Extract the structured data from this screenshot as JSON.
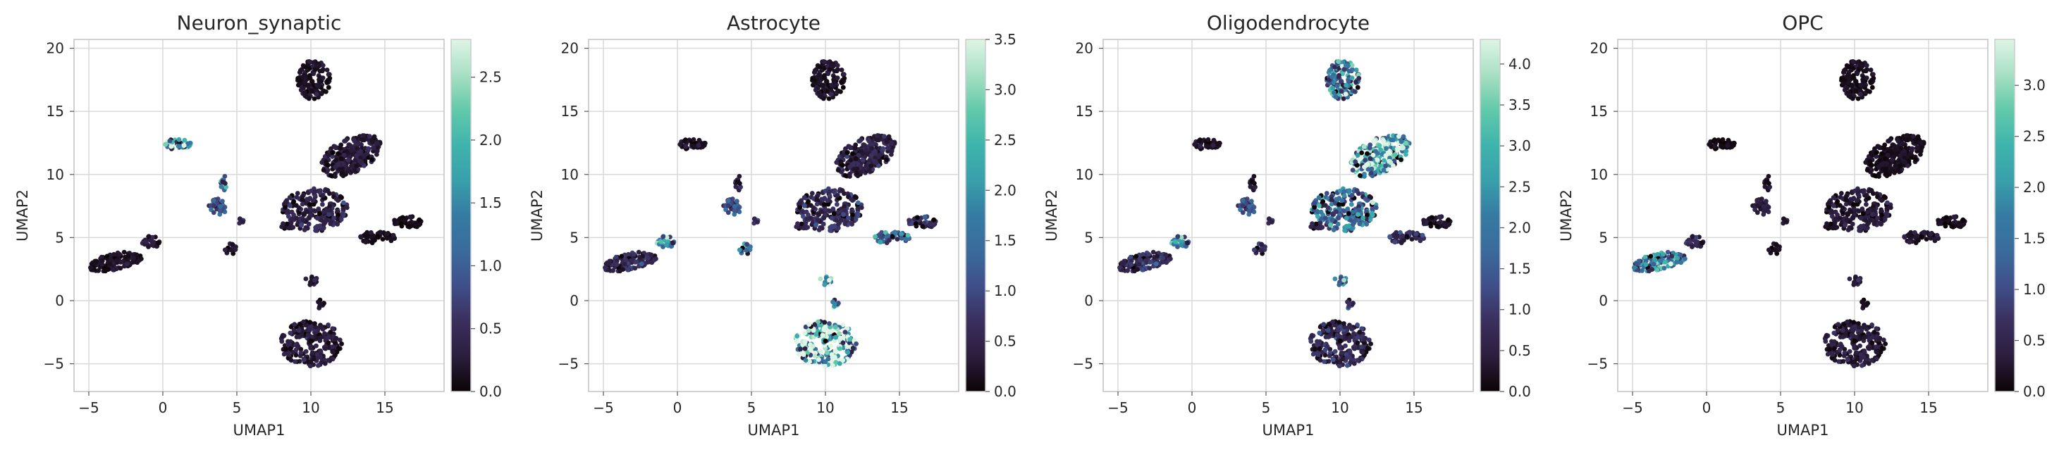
{
  "colorbar_colors": [
    "#0b0405",
    "#2c1e3e",
    "#3b2f5e",
    "#3f4f8a",
    "#3a6b9c",
    "#357ba2",
    "#38a0ab",
    "#3fb4ad",
    "#62c9aa",
    "#a8e0c3",
    "#def5e5"
  ],
  "panels": [
    {
      "title": "Neuron_synaptic",
      "xlabel": "UMAP1",
      "ylabel": "UMAP2",
      "x_ticks": [
        -5,
        0,
        5,
        10,
        15
      ],
      "y_ticks": [
        -5,
        0,
        5,
        10,
        15,
        20
      ],
      "xlim": [
        -6,
        19
      ],
      "ylim": [
        -7.2,
        20.7
      ],
      "cbar_max": 2.8,
      "cbar_ticks": [
        "0.0",
        "0.5",
        "1.0",
        "1.5",
        "2.0",
        "2.5"
      ]
    },
    {
      "title": "Astrocyte",
      "xlabel": "UMAP1",
      "ylabel": "UMAP2",
      "x_ticks": [
        -5,
        0,
        5,
        10,
        15
      ],
      "y_ticks": [
        -5,
        0,
        5,
        10,
        15,
        20
      ],
      "xlim": [
        -6,
        19
      ],
      "ylim": [
        -7.2,
        20.7
      ],
      "cbar_max": 3.5,
      "cbar_ticks": [
        "0.0",
        "0.5",
        "1.0",
        "1.5",
        "2.0",
        "2.5",
        "3.0",
        "3.5"
      ]
    },
    {
      "title": "Oligodendrocyte",
      "xlabel": "UMAP1",
      "ylabel": "UMAP2",
      "x_ticks": [
        -5,
        0,
        5,
        10,
        15
      ],
      "y_ticks": [
        -5,
        0,
        5,
        10,
        15,
        20
      ],
      "xlim": [
        -6,
        19
      ],
      "ylim": [
        -7.2,
        20.7
      ],
      "cbar_max": 4.3,
      "cbar_ticks": [
        "0.0",
        "0.5",
        "1.0",
        "1.5",
        "2.0",
        "2.5",
        "3.0",
        "3.5",
        "4.0"
      ]
    },
    {
      "title": "OPC",
      "xlabel": "UMAP1",
      "ylabel": "UMAP2",
      "x_ticks": [
        -5,
        0,
        5,
        10,
        15
      ],
      "y_ticks": [
        -5,
        0,
        5,
        10,
        15,
        20
      ],
      "xlim": [
        -6,
        19
      ],
      "ylim": [
        -7.2,
        20.7
      ],
      "cbar_max": 3.45,
      "cbar_ticks": [
        "0.0",
        "0.5",
        "1.0",
        "1.5",
        "2.0",
        "2.5",
        "3.0"
      ]
    }
  ],
  "chart_data": {
    "type": "scatter",
    "grid": true,
    "clusters": [
      {
        "cx": 10.2,
        "cy": 17.5,
        "rx": 1.1,
        "ry": 1.6,
        "n": 130
      },
      {
        "cx": 1.0,
        "cy": 12.4,
        "rx": 0.9,
        "ry": 0.45,
        "n": 45
      },
      {
        "cx": 12.7,
        "cy": 11.5,
        "rx": 2.3,
        "ry": 1.3,
        "n": 240,
        "rot": 0.6
      },
      {
        "cx": 10.3,
        "cy": 7.2,
        "rx": 2.2,
        "ry": 1.7,
        "n": 210
      },
      {
        "cx": 8.3,
        "cy": 5.9,
        "rx": 0.7,
        "ry": 0.3,
        "n": 14
      },
      {
        "cx": 4.1,
        "cy": 9.3,
        "rx": 0.25,
        "ry": 0.6,
        "n": 12
      },
      {
        "cx": 3.7,
        "cy": 7.4,
        "rx": 0.6,
        "ry": 0.7,
        "n": 30
      },
      {
        "cx": 4.6,
        "cy": 4.1,
        "rx": 0.4,
        "ry": 0.45,
        "n": 16
      },
      {
        "cx": 5.2,
        "cy": 6.3,
        "rx": 0.3,
        "ry": 0.2,
        "n": 6
      },
      {
        "cx": 16.5,
        "cy": 6.2,
        "rx": 1.0,
        "ry": 0.5,
        "n": 45
      },
      {
        "cx": 14.5,
        "cy": 5.0,
        "rx": 1.2,
        "ry": 0.5,
        "n": 45
      },
      {
        "cx": -3.2,
        "cy": 3.1,
        "rx": 1.9,
        "ry": 0.65,
        "n": 140,
        "rot": 0.25
      },
      {
        "cx": -0.8,
        "cy": 4.7,
        "rx": 0.6,
        "ry": 0.55,
        "n": 28
      },
      {
        "cx": 10.0,
        "cy": -3.4,
        "rx": 2.1,
        "ry": 1.8,
        "n": 230
      },
      {
        "cx": 10.0,
        "cy": 1.6,
        "rx": 0.45,
        "ry": 0.35,
        "n": 14
      },
      {
        "cx": 10.6,
        "cy": -0.3,
        "rx": 0.3,
        "ry": 0.4,
        "n": 10
      }
    ],
    "series": [
      {
        "name": "Neuron_synaptic",
        "level": [
          0.15,
          1.8,
          0.25,
          0.35,
          0.2,
          1.1,
          0.7,
          0.25,
          0.3,
          0.1,
          0.1,
          0.15,
          0.2,
          0.25,
          0.2,
          0.2
        ]
      },
      {
        "name": "Astrocyte",
        "level": [
          0.2,
          0.2,
          0.4,
          0.55,
          0.4,
          0.4,
          0.9,
          1.6,
          0.5,
          0.6,
          1.1,
          0.5,
          1.5,
          2.6,
          2.0,
          2.2
        ]
      },
      {
        "name": "Oligodendrocyte",
        "level": [
          1.8,
          0.25,
          2.9,
          1.6,
          0.5,
          0.3,
          1.1,
          0.8,
          0.5,
          0.3,
          0.6,
          0.7,
          1.7,
          0.6,
          1.5,
          1.0
        ]
      },
      {
        "name": "OPC",
        "level": [
          0.15,
          0.1,
          0.15,
          0.3,
          0.15,
          0.2,
          0.3,
          0.2,
          0.2,
          0.15,
          0.2,
          1.5,
          0.4,
          0.3,
          0.3,
          0.2
        ]
      }
    ]
  }
}
